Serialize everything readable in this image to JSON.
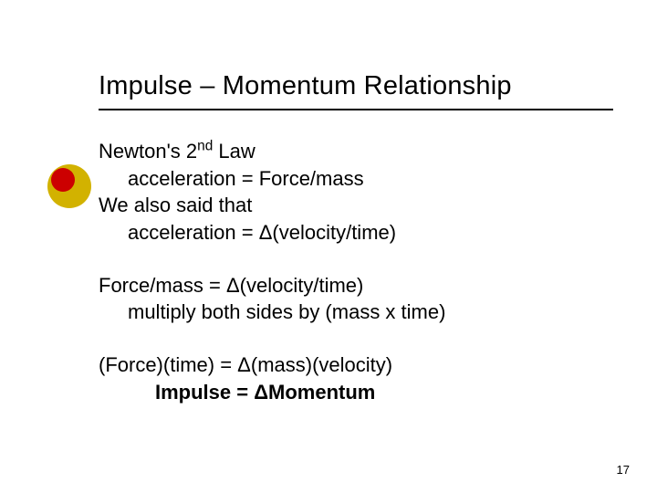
{
  "title": "Impulse – Momentum Relationship",
  "lines": {
    "l1a": "Newton's 2",
    "l1b": " Law",
    "sup": "nd",
    "l2": "acceleration = Force/mass",
    "l3": "We also said that",
    "l4": "acceleration = Δ(velocity/time)",
    "l5": "Force/mass = Δ(velocity/time)",
    "l6": "multiply both sides by (mass x time)",
    "l7": "(Force)(time) = Δ(mass)(velocity)",
    "l8": "Impulse = ΔMomentum"
  },
  "pageNumber": "17",
  "colors": {
    "bulletOuter": "#d2b200",
    "bulletInner": "#cc0000",
    "text": "#000000",
    "background": "#ffffff"
  },
  "typography": {
    "titleFontSize": 29,
    "bodyFontSize": 22,
    "pageNumberFontSize": 13,
    "fontFamily": "Verdana"
  }
}
